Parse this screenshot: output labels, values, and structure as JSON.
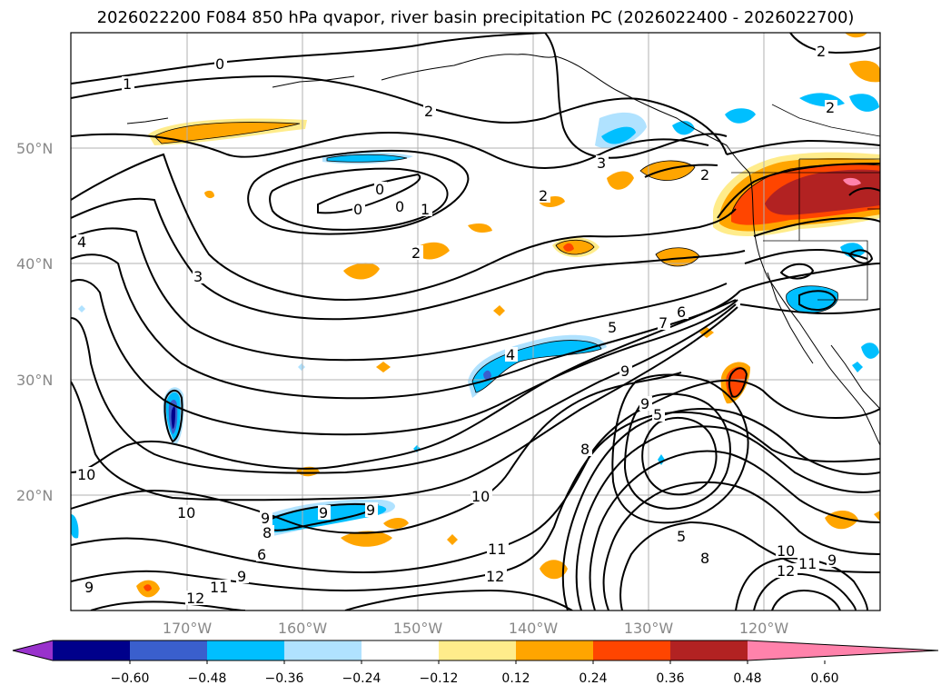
{
  "title": "2026022200 F084 850 hPa qvapor, river basin precipitation PC (2026022400 - 2026022700)",
  "lat_labels": [
    "50°N",
    "40°N",
    "30°N",
    "20°N"
  ],
  "lon_labels": [
    "170°W",
    "160°W",
    "150°W",
    "140°W",
    "130°W",
    "120°W"
  ],
  "contour_labels": {
    "c0a": "0",
    "c1a": "1",
    "c2a": "2",
    "c2b": "2",
    "c2c": "2",
    "c3a": "3",
    "c0b": "0",
    "c0c": "0",
    "c0d": "0",
    "c1b": "1",
    "c2d": "2",
    "c4a": "4",
    "c3b": "3",
    "c2e": "2",
    "c5a": "5",
    "c6a": "6",
    "c7a": "7",
    "c4b": "4",
    "c9a": "9",
    "c8a": "8",
    "c5b": "5",
    "c9b": "9",
    "c10a": "10",
    "c10b": "10",
    "c9c": "9",
    "c9d": "9",
    "c8b": "8",
    "c6b": "6",
    "c9e": "9",
    "c11a": "11",
    "c12a": "12",
    "c9f": "9",
    "c12b": "12",
    "c10c": "10",
    "c11b": "11",
    "c12c": "12",
    "c9g": "9",
    "c5c": "5",
    "c8c": "8",
    "c11c": "11",
    "c10d": "10",
    "c9h": "9",
    "c2f": "2"
  },
  "colorbar": {
    "ticks": [
      "−0.60",
      "−0.48",
      "−0.36",
      "−0.24",
      "−0.12",
      "0.12",
      "0.24",
      "0.36",
      "0.48",
      "0.60"
    ],
    "colors": [
      "#9932cc",
      "#00008b",
      "#3a5fcd",
      "#00bfff",
      "#b0e2ff",
      "#ffffff",
      "#ffec8b",
      "#ffa500",
      "#ff4500",
      "#b22222",
      "#ff82ab"
    ]
  },
  "colors": {
    "orange": "#ffa500",
    "yellow": "#ffec8b",
    "red": "#ff4500",
    "darkred": "#b22222",
    "pink": "#ff82ab",
    "lightblue": "#b0e2ff",
    "blue": "#00bfff",
    "royal": "#3a5fcd",
    "navy": "#00008b",
    "purple": "#9932cc"
  }
}
